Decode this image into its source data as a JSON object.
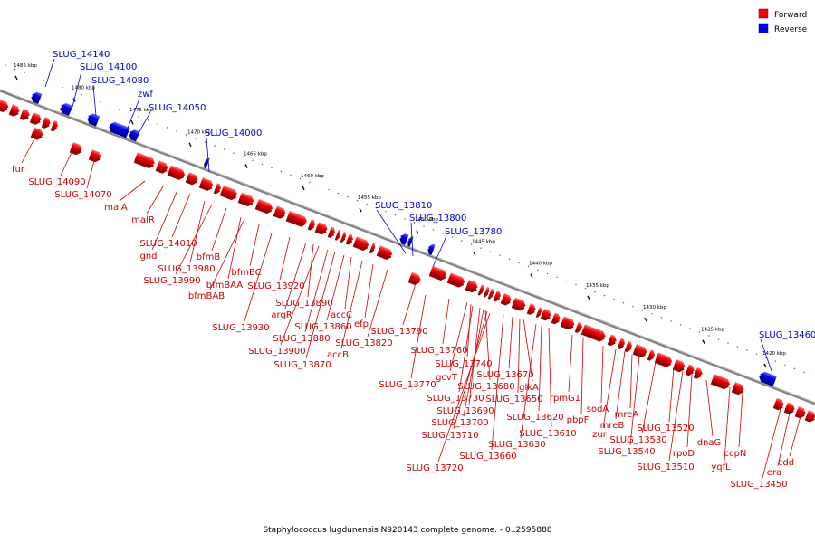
{
  "caption": "Staphylococcus lugdunensis N920143 complete genome. - 0..2595888",
  "legend": {
    "forward_label": "Forward",
    "reverse_label": "Reverse",
    "forward_color": "#ff0000",
    "reverse_color": "#0000ff"
  },
  "colors": {
    "forward_label": "#cc0000",
    "reverse_label": "#0000cc",
    "backbone": "#808080"
  },
  "ticks": [
    "1485 kbp",
    "1480 kbp",
    "1475 kbp",
    "1470 kbp",
    "1465 kbp",
    "1460 kbp",
    "1455 kbp",
    "1450 kbp",
    "1445 kbp",
    "1440 kbp",
    "1435 kbp",
    "1430 kbp",
    "1425 kbp",
    "1420 kbp"
  ],
  "reverse_labels": [
    "SLUG_14140",
    "SLUG_14100",
    "SLUG_14080",
    "zwf",
    "SLUG_14050",
    "SLUG_14000",
    "SLUG_13810",
    "SLUG_13800",
    "SLUG_13780",
    "SLUG_13460"
  ],
  "forward_labels": [
    "fur",
    "SLUG_14090",
    "SLUG_14070",
    "malA",
    "malR",
    "SLUG_14010",
    "gnd",
    "SLUG_13980",
    "SLUG_13990",
    "bfmB",
    "bfmBAA",
    "bfmBAB",
    "bfmBC",
    "SLUG_13920",
    "SLUG_13930",
    "argR",
    "SLUG_13890",
    "SLUG_13880",
    "SLUG_13900",
    "SLUG_13870",
    "SLUG_13860",
    "accC",
    "accB",
    "efp",
    "SLUG_13820",
    "SLUG_13790",
    "SLUG_13770",
    "SLUG_13760",
    "SLUG_13740",
    "gcvT",
    "SLUG_13730",
    "SLUG_13680",
    "SLUG_13690",
    "SLUG_13700",
    "SLUG_13710",
    "SLUG_13720",
    "SLUG_13670",
    "glkA",
    "SLUG_13650",
    "SLUG_13660",
    "SLUG_13620",
    "SLUG_13630",
    "SLUG_13610",
    "rpmG1",
    "pbpF",
    "sodA",
    "zur",
    "mreB",
    "mreA",
    "SLUG_13540",
    "SLUG_13530",
    "SLUG_13520",
    "SLUG_13510",
    "rpoD",
    "dnaG",
    "yqfL",
    "ccpN",
    "SLUG_13450",
    "era",
    "cdd"
  ]
}
